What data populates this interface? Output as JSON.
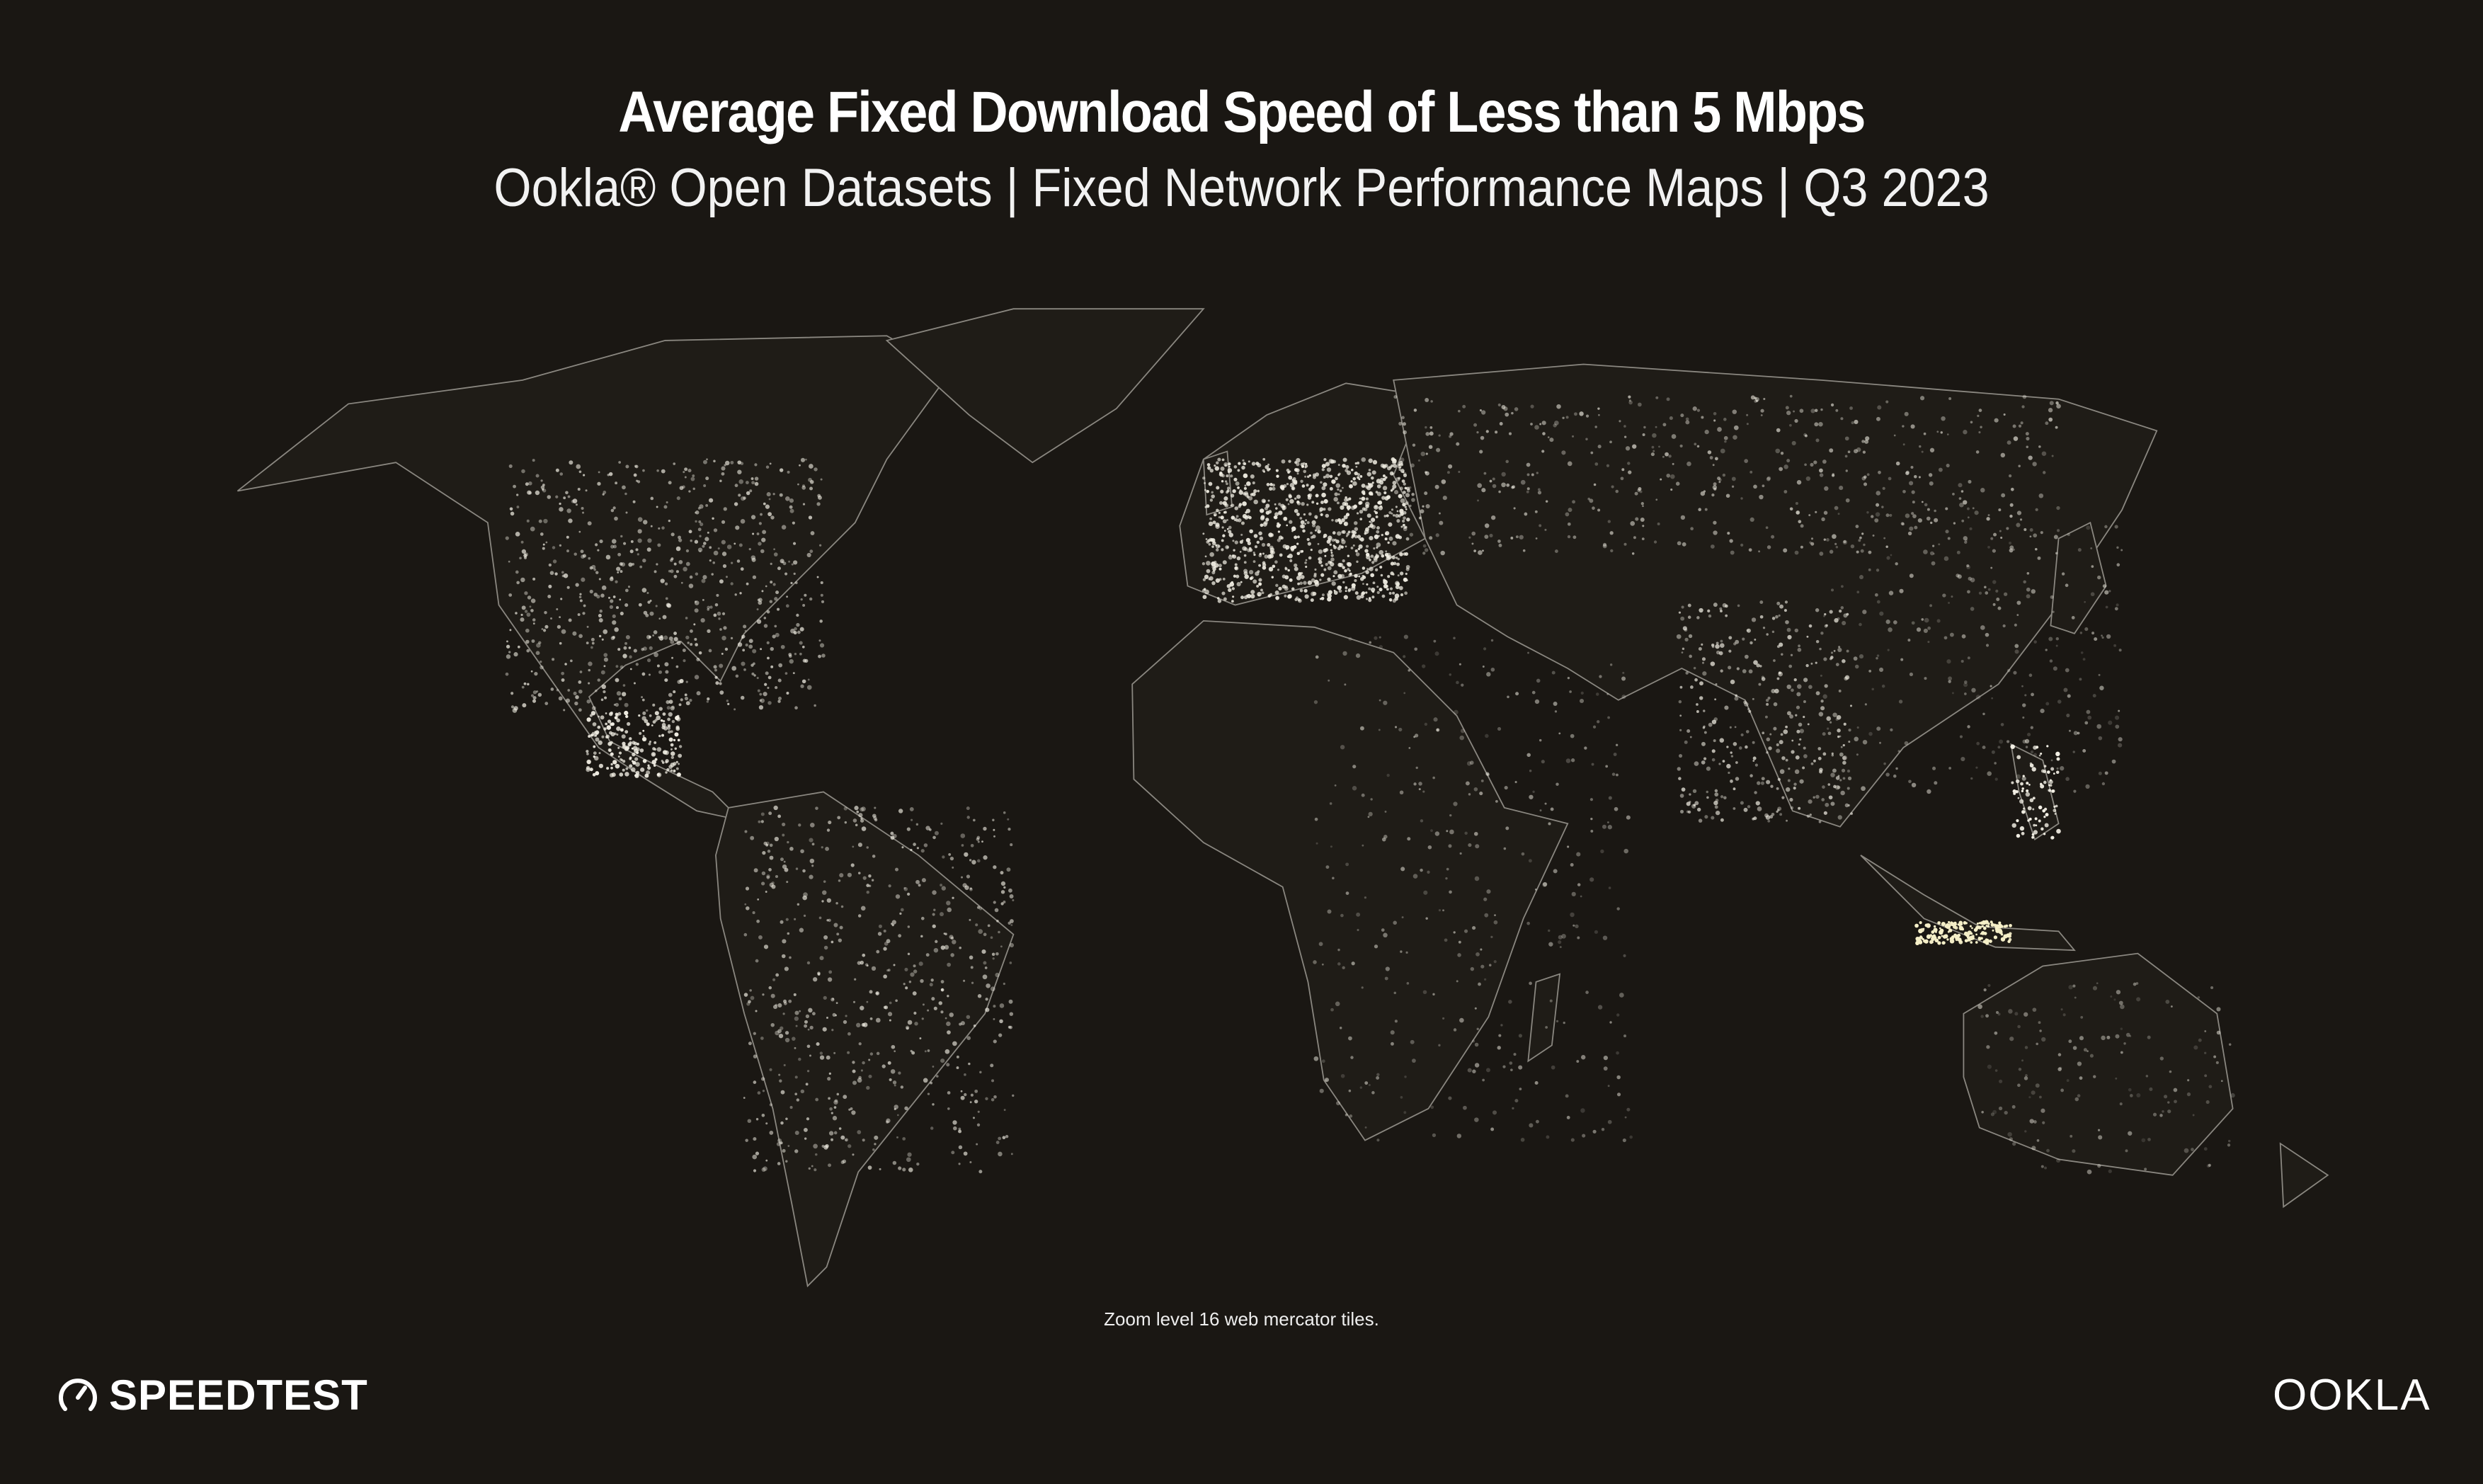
{
  "header": {
    "title": "Average Fixed Download Speed of Less than 5 Mbps",
    "subtitle": "Ookla® Open Datasets | Fixed Network Performance Maps | Q3 2023"
  },
  "map": {
    "projection": "web mercator",
    "background_color": "#1a1713",
    "border_color": "#8a8780",
    "point_color": "#f2efe4",
    "highlight_color": "#f5efc8"
  },
  "footnote": "Zoom level 16 web mercator tiles.",
  "logos": {
    "speedtest": "SPEEDTEST",
    "ookla": "OOKLA"
  }
}
